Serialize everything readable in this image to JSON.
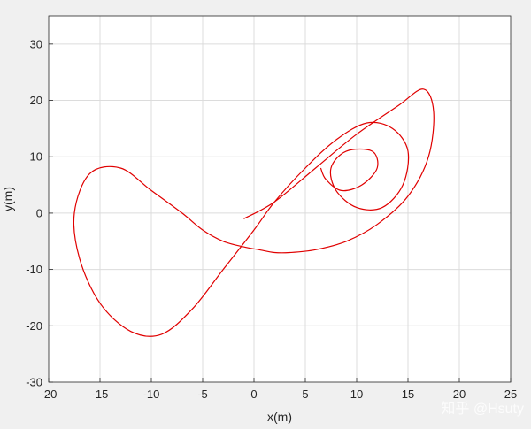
{
  "chart_data": {
    "type": "line",
    "title": "",
    "xlabel": "x(m)",
    "ylabel": "y(m)",
    "xlim": [
      -20,
      25
    ],
    "ylim": [
      -30,
      35
    ],
    "xticks": [
      -20,
      -15,
      -10,
      -5,
      0,
      5,
      10,
      15,
      20,
      25
    ],
    "yticks": [
      -30,
      -20,
      -10,
      0,
      10,
      20,
      30
    ],
    "grid": true,
    "line_color": "#e00000",
    "series": [
      {
        "name": "",
        "x": [
          -1.0,
          2.0,
          6.0,
          10.0,
          14.0,
          16.5,
          17.5,
          17.0,
          15.0,
          12.0,
          9.0,
          6.0,
          3.5,
          2.0,
          0.5,
          -1.0,
          -3.0,
          -5.0,
          -7.0,
          -10.0,
          -13.0,
          -16.0,
          -17.5,
          -17.0,
          -15.0,
          -12.0,
          -9.0,
          -6.0,
          -3.0,
          0.0,
          2.0,
          5.0,
          8.0,
          11.0,
          13.5,
          15.0,
          14.5,
          12.5,
          10.0,
          8.0,
          7.5,
          9.0,
          11.5,
          12.0,
          10.5,
          8.5,
          7.0,
          6.5
        ],
        "y": [
          -1.0,
          2.0,
          8.0,
          14.0,
          19.0,
          22.0,
          18.0,
          10.0,
          3.0,
          -2.0,
          -5.0,
          -6.5,
          -7.0,
          -7.0,
          -6.5,
          -6.0,
          -5.0,
          -3.0,
          0.0,
          4.0,
          8.0,
          7.0,
          0.0,
          -8.0,
          -16.0,
          -21.0,
          -21.5,
          -17.0,
          -10.0,
          -3.0,
          2.0,
          8.0,
          13.0,
          16.0,
          15.0,
          11.0,
          5.0,
          1.0,
          1.0,
          4.0,
          8.0,
          11.0,
          11.0,
          8.0,
          5.0,
          4.0,
          6.0,
          8.0
        ]
      }
    ]
  },
  "watermark": "知乎 @Hsuty"
}
